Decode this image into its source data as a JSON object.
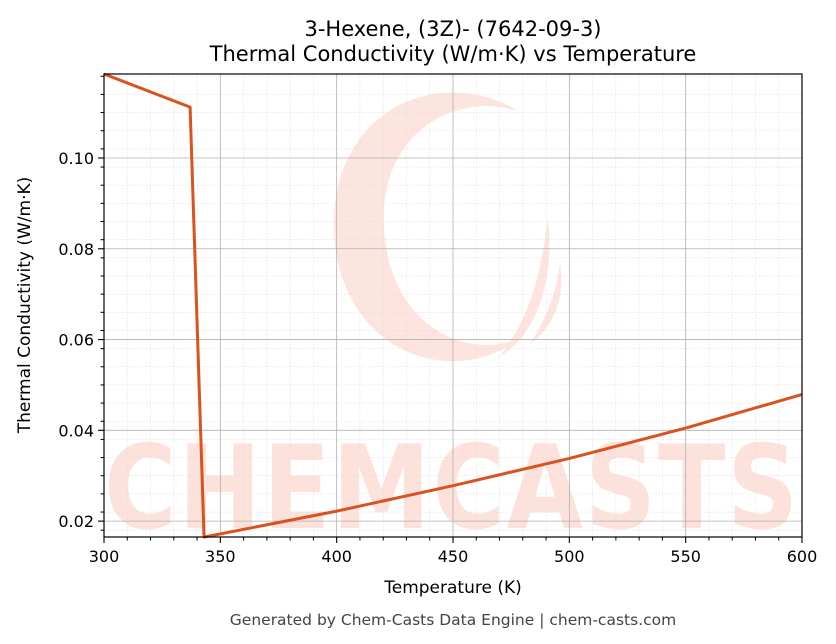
{
  "chart_data": {
    "type": "line",
    "title_lines": [
      "3-Hexene, (3Z)- (7642-09-3)",
      "Thermal Conductivity (W/m·K) vs Temperature"
    ],
    "xlabel": "Temperature (K)",
    "ylabel": "Thermal Conductivity (W/m·K)",
    "xlim": [
      300,
      600
    ],
    "ylim": [
      0.0165,
      0.1185
    ],
    "xticks": [
      300,
      350,
      400,
      450,
      500,
      550,
      600
    ],
    "yticks": [
      0.02,
      0.04,
      0.06,
      0.08,
      0.1
    ],
    "ytick_labels": [
      "0.02",
      "0.04",
      "0.06",
      "0.08",
      "0.10"
    ],
    "grid": true,
    "minor_grid": true,
    "series": [
      {
        "color": "#d9531e",
        "x": [
          300,
          337,
          343,
          343.2,
          400,
          450,
          500,
          550,
          600
        ],
        "y": [
          0.1185,
          0.1112,
          0.0165,
          0.0165,
          0.0222,
          0.0278,
          0.0338,
          0.0405,
          0.0479
        ]
      }
    ]
  },
  "watermark": {
    "text": "CHEMCASTS",
    "color": "#fde2dc"
  },
  "footer": "Generated by Chem-Casts Data Engine | chem-casts.com"
}
